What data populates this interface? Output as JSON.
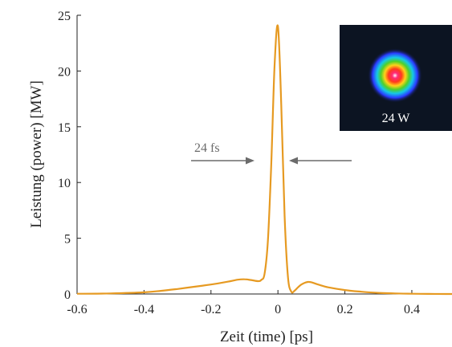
{
  "chart_data": {
    "type": "line",
    "title": "",
    "xlabel": "Zeit (time) [ps]",
    "ylabel": "Leistung (power) [MW]",
    "xlim": [
      -0.6,
      0.52
    ],
    "ylim": [
      0,
      25
    ],
    "xticks": [
      -0.6,
      -0.4,
      -0.2,
      0,
      0.2,
      0.4
    ],
    "xtick_labels": [
      "-0.6",
      "-0.4",
      "-0.2",
      "0",
      "0.2",
      "0.4"
    ],
    "yticks": [
      0,
      5,
      10,
      15,
      20,
      25
    ],
    "ytick_labels": [
      "0",
      "5",
      "10",
      "15",
      "20",
      "25"
    ],
    "grid": false,
    "series": [
      {
        "color": "#e69a22",
        "x": [
          -0.6,
          -0.5,
          -0.4,
          -0.35,
          -0.3,
          -0.25,
          -0.2,
          -0.15,
          -0.12,
          -0.1,
          -0.08,
          -0.06,
          -0.05,
          -0.04,
          -0.03,
          -0.02,
          -0.01,
          0,
          0.01,
          0.02,
          0.03,
          0.04,
          0.05,
          0.06,
          0.07,
          0.08,
          0.09,
          0.1,
          0.12,
          0.15,
          0.2,
          0.25,
          0.3,
          0.35,
          0.4,
          0.45,
          0.5,
          0.52
        ],
        "y": [
          0.02,
          0.05,
          0.15,
          0.28,
          0.45,
          0.65,
          0.85,
          1.1,
          1.28,
          1.32,
          1.25,
          1.15,
          1.25,
          1.8,
          4.8,
          11.5,
          20.5,
          24.0,
          17.0,
          7.0,
          1.5,
          0.2,
          0.3,
          0.6,
          0.85,
          1.0,
          1.08,
          1.05,
          0.85,
          0.6,
          0.35,
          0.2,
          0.1,
          0.05,
          0.02,
          0.01,
          0.0,
          0.0
        ]
      }
    ],
    "annotations": [
      {
        "text": "24 fs",
        "arrows": [
          {
            "from": -0.24,
            "to": -0.05,
            "y": 11.8
          },
          {
            "from": 0.24,
            "to": 0.05,
            "y": 11.8
          }
        ]
      }
    ],
    "inset": {
      "label": "24 W",
      "description_colors": [
        "#ffffff",
        "#ff1a66",
        "#ff3a2a",
        "#ffd21a",
        "#4ed12a",
        "#15c8e8",
        "#2a3aff"
      ]
    }
  }
}
